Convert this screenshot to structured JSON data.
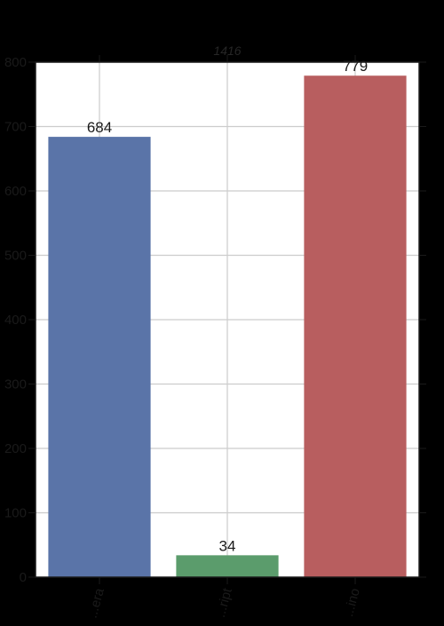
{
  "chart_data": {
    "type": "bar",
    "title": "1416",
    "xlabel": "",
    "ylabel": "",
    "categories": [
      "...era",
      "...ript",
      "...ino"
    ],
    "values": [
      684,
      34,
      779
    ],
    "ylim": [
      0,
      800
    ],
    "yticks": [
      "0",
      "100",
      "200",
      "300",
      "400",
      "500",
      "600",
      "700",
      "800"
    ],
    "grid": true,
    "legend": "none",
    "colors": {
      "figure_background": "#000000",
      "plot_background": "#ffffff",
      "grid": "#cccccc",
      "axis": "#1a1a1a",
      "bars": [
        "#5a74a8",
        "#5b9c6c",
        "#b85e5f"
      ]
    }
  }
}
